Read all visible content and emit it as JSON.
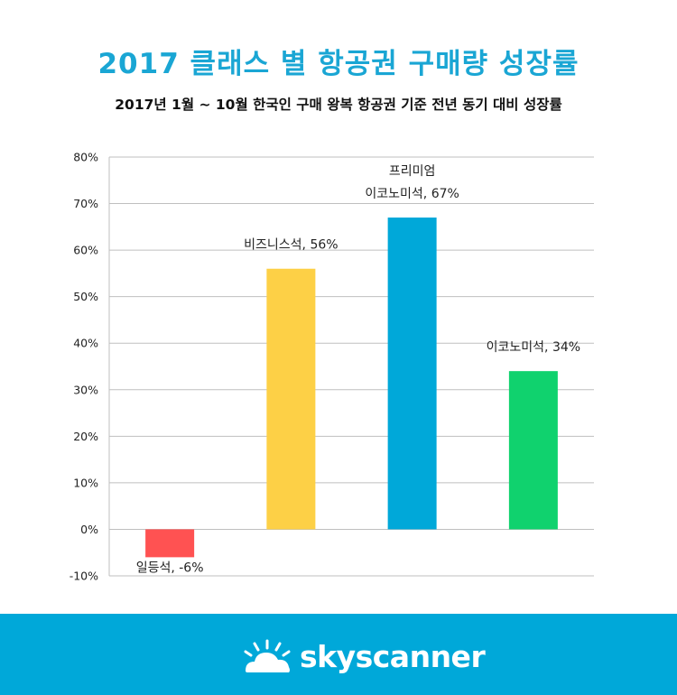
{
  "header": {
    "title": "2017 클래스 별 항공권 구매량 성장률",
    "subtitle": "2017년 1월 ~ 10월 한국인 구매 왕복 항공권 기준 전년 동기 대비 성장률"
  },
  "chart_data": {
    "type": "bar",
    "categories": [
      "일등석",
      "비즈니스석",
      "프리미엄 이코노미석",
      "이코노미석"
    ],
    "values": [
      -6,
      56,
      67,
      34
    ],
    "data_labels": [
      [
        "일등석, -6%"
      ],
      [
        "비즈니스석, 56%"
      ],
      [
        "프리미엄",
        "이코노미석, 67%"
      ],
      [
        "이코노미석, 34%"
      ]
    ],
    "colors": [
      "#ff5252",
      "#fdd046",
      "#00a8d9",
      "#10d26e"
    ],
    "ylim": [
      -10,
      80
    ],
    "yticks": [
      -10,
      0,
      10,
      20,
      30,
      40,
      50,
      60,
      70,
      80
    ],
    "ytick_format": "%",
    "grid": true,
    "xlabel": "",
    "ylabel": ""
  },
  "footer": {
    "brand": "skyscanner",
    "background": "#00a8d9"
  }
}
